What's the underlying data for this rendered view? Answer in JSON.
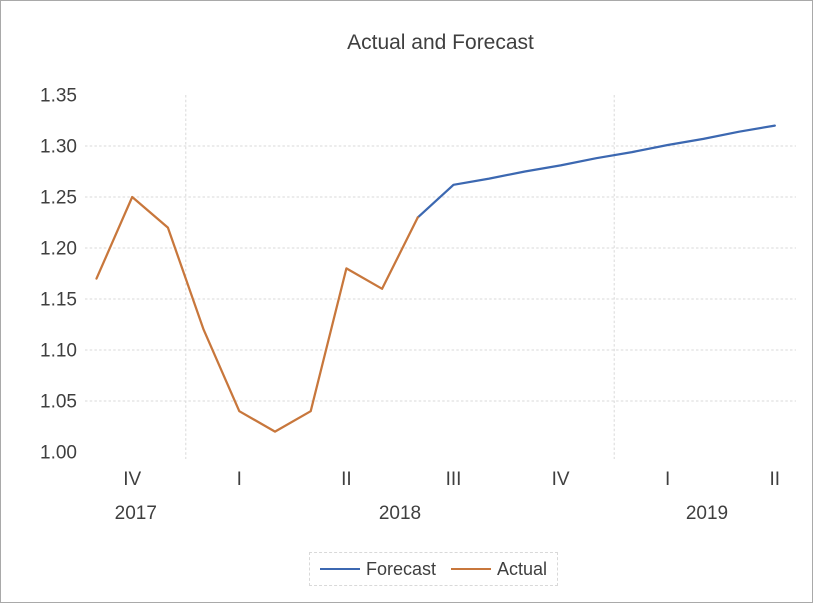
{
  "frame": {
    "border_color": "#a9a9a9",
    "background": "#ffffff"
  },
  "colors": {
    "text": "#3f3f3f",
    "gridline": "#d9d9d9",
    "forecast_blue": "#3c68b1",
    "actual_orange": "#c8773c"
  },
  "chart_data": {
    "type": "line",
    "title": "Actual and Forecast",
    "xlabel": "",
    "ylabel": "",
    "ylim": [
      1.0,
      1.35
    ],
    "ytick_step": 0.05,
    "ytick_labels": [
      "1.00",
      "1.05",
      "1.10",
      "1.15",
      "1.20",
      "1.25",
      "1.30",
      "1.35"
    ],
    "grid": "horizontal dashed, plus dashed vertical year separators; no axis lines",
    "n_points": 20,
    "x_axis": {
      "unit": "monthly points labeled by quarter",
      "quarter_ticks": [
        {
          "label": "IV",
          "index": 1
        },
        {
          "label": "I",
          "index": 4
        },
        {
          "label": "II",
          "index": 7
        },
        {
          "label": "III",
          "index": 10
        },
        {
          "label": "IV",
          "index": 13
        },
        {
          "label": "I",
          "index": 16
        },
        {
          "label": "II",
          "index": 19
        }
      ],
      "year_labels": [
        {
          "label": "2017",
          "index": 1.1
        },
        {
          "label": "2018",
          "index": 8.5
        },
        {
          "label": "2019",
          "index": 17.1
        }
      ],
      "year_separator_indices": [
        2.5,
        14.5
      ]
    },
    "series": [
      {
        "name": "Forecast",
        "color": "#3c68b1",
        "start_index": 9,
        "values": [
          1.23,
          1.262,
          1.268,
          1.275,
          1.281,
          1.288,
          1.294,
          1.301,
          1.307,
          1.314,
          1.32
        ]
      },
      {
        "name": "Actual",
        "color": "#c8773c",
        "start_index": 0,
        "values": [
          1.17,
          1.25,
          1.22,
          1.12,
          1.04,
          1.02,
          1.04,
          1.18,
          1.16,
          1.23
        ]
      }
    ],
    "legend": {
      "position": "bottom",
      "entries": [
        "Forecast",
        "Actual"
      ]
    }
  }
}
